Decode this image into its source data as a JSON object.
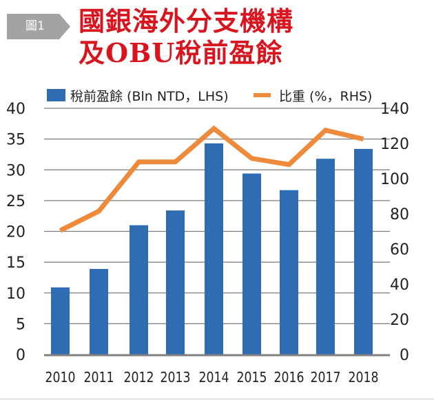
{
  "badge": {
    "label": "圖1",
    "color": "#a3a3a3"
  },
  "title": {
    "line1": "國銀海外分支機構",
    "line2": "及OBU稅前盈餘",
    "color": "#d8151f"
  },
  "legend": {
    "bar_label": "稅前盈餘 (Bln NTD，LHS)",
    "line_label": "比重 (%，RHS)"
  },
  "colors": {
    "bar": "#2e6db4",
    "line": "#ee8a3c",
    "grid": "#7a7a7a",
    "axis": "#808080",
    "text": "#231f20"
  },
  "chart_data": {
    "type": "bar",
    "title": "國銀海外分支機構及OBU稅前盈餘",
    "xlabel": "",
    "categories": [
      "2010",
      "2011",
      "2012",
      "2013",
      "2014",
      "2015",
      "2016",
      "2017",
      "2018"
    ],
    "series": [
      {
        "name": "稅前盈餘 (Bln NTD，LHS)",
        "type": "bar",
        "axis": "left",
        "values": [
          10.9,
          13.9,
          21.0,
          23.4,
          34.3,
          29.4,
          26.7,
          31.8,
          33.4
        ]
      },
      {
        "name": "比重 (%，RHS)",
        "type": "line",
        "axis": "right",
        "values": [
          70.5,
          81.5,
          109.5,
          109.5,
          128.5,
          111.5,
          108,
          127.5,
          122.5
        ]
      }
    ],
    "ylim_left": [
      0,
      40
    ],
    "yticks_left": [
      0,
      5,
      10,
      15,
      20,
      25,
      30,
      35,
      40
    ],
    "ylim_right": [
      0,
      140
    ],
    "yticks_right": [
      0,
      20,
      40,
      60,
      80,
      100,
      120,
      140
    ],
    "grid": true,
    "legend": "top"
  }
}
